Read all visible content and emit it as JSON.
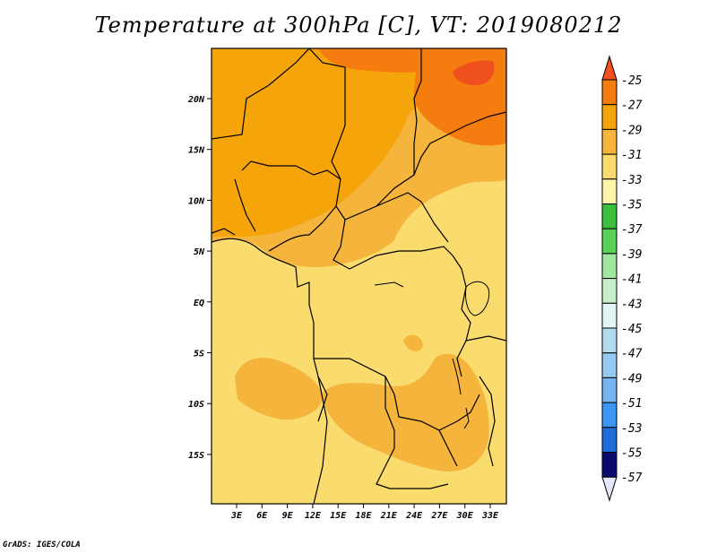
{
  "title": "Temperature at 300hPa [C], VT: 2019080212",
  "credit": "GrADS: IGES/COLA",
  "map": {
    "lat_labels": [
      "20N",
      "15N",
      "10N",
      "5N",
      "EQ",
      "5S",
      "10S",
      "15S"
    ],
    "lon_labels": [
      "3E",
      "6E",
      "9E",
      "12E",
      "15E",
      "18E",
      "21E",
      "24E",
      "27E",
      "30E",
      "33E"
    ]
  },
  "colorbar": {
    "labels": [
      "-25",
      "-27",
      "-29",
      "-31",
      "-33",
      "-35",
      "-37",
      "-39",
      "-41",
      "-43",
      "-45",
      "-47",
      "-49",
      "-51",
      "-53",
      "-55",
      "-57"
    ]
  },
  "colors": {
    "c_25_up": "#f0501e",
    "c_27": "#f57d0f",
    "c_29": "#f5a50a",
    "c_31": "#f5b43c",
    "c_33": "#fadc6e",
    "c_35": "#fff5aa",
    "c_37": "#3cbe3c",
    "c_39": "#5ad25a",
    "c_41": "#a0e6a0",
    "c_43": "#c8f0c8",
    "c_45": "#e1f5f5",
    "c_47": "#b4dcf0",
    "c_49": "#96c8f0",
    "c_51": "#78b4f0",
    "c_53": "#3c96f5",
    "c_55": "#1e6edc",
    "c_57": "#1e3cb4",
    "c_57_down": "#0a0a6e",
    "c_lower_arrow": "#e6e6fa"
  }
}
